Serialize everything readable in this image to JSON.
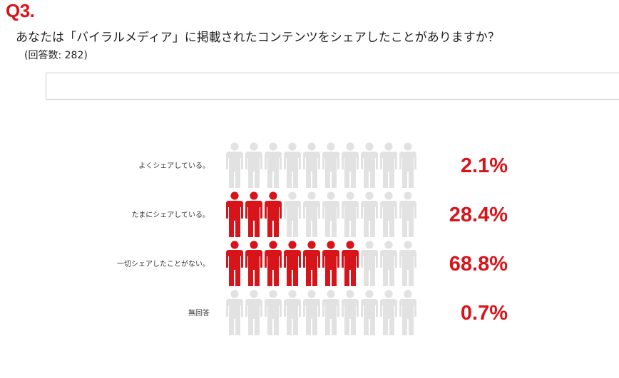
{
  "question": {
    "number": "Q3.",
    "text": "あなたは「バイラルメディア」に掲載されたコンテンツをシェアしたことがありますか？",
    "count": "(回答数: 282)"
  },
  "colors": {
    "accent": "#d7141a",
    "inactive": "#e2e2e2"
  },
  "chart_data": {
    "type": "bar",
    "style": "pictogram",
    "icons_per_row": 10,
    "icon": "person-icon",
    "categories": [
      "よくシェアしている。",
      "たまにシェアしている。",
      "一切シェアしたことがない。",
      "無回答"
    ],
    "values": [
      2.1,
      28.4,
      68.8,
      0.7
    ],
    "value_labels": [
      "2.1%",
      "28.4%",
      "68.8%",
      "0.7%"
    ],
    "filled_icons": [
      0,
      3,
      7,
      0
    ],
    "unit": "%"
  }
}
